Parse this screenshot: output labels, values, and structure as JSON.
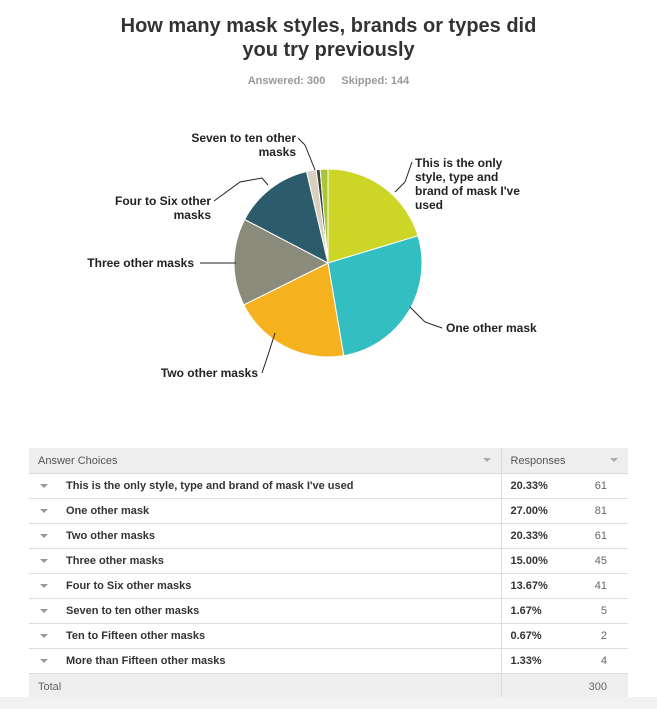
{
  "survey": {
    "title_line1": "How many mask styles, brands or types did",
    "title_line2": "you try previously",
    "answered_label": "Answered: 300",
    "skipped_label": "Skipped: 144"
  },
  "chart_data": {
    "type": "pie",
    "categories": [
      "This is the only style, type and brand of mask I've used",
      "One other mask",
      "Two other masks",
      "Three other masks",
      "Four to Six other masks",
      "Seven to ten other masks",
      "Ten to Fifteen other masks",
      "More than Fifteen other masks"
    ],
    "values": [
      20.33,
      27.0,
      20.33,
      15.0,
      13.67,
      1.67,
      0.67,
      1.33
    ],
    "colors": [
      "#cdd627",
      "#33bec1",
      "#f6b11f",
      "#8b8b7b",
      "#2c5c6c",
      "#d8cfbe",
      "#3b3f35",
      "#a8c63a"
    ],
    "labels": [
      [
        "This is the only",
        "style, type and",
        "brand of mask I've",
        "used"
      ],
      [
        "One other mask"
      ],
      [
        "Two other masks"
      ],
      [
        "Three other masks"
      ],
      [
        "Four to Six other",
        "masks"
      ],
      [
        "Seven to ten other",
        "masks"
      ],
      null,
      null
    ]
  },
  "table": {
    "header_choices": "Answer Choices",
    "header_responses": "Responses",
    "rows": [
      {
        "choice": "This is the only style, type and brand of mask I've used",
        "pct": "20.33%",
        "count": "61"
      },
      {
        "choice": "One other mask",
        "pct": "27.00%",
        "count": "81"
      },
      {
        "choice": "Two other masks",
        "pct": "20.33%",
        "count": "61"
      },
      {
        "choice": "Three other masks",
        "pct": "15.00%",
        "count": "45"
      },
      {
        "choice": "Four to Six other masks",
        "pct": "13.67%",
        "count": "41"
      },
      {
        "choice": "Seven to ten other masks",
        "pct": "1.67%",
        "count": "5"
      },
      {
        "choice": "Ten to Fifteen other masks",
        "pct": "0.67%",
        "count": "2"
      },
      {
        "choice": "More than Fifteen other masks",
        "pct": "1.33%",
        "count": "4"
      }
    ],
    "total_label": "Total",
    "total_value": "300"
  }
}
